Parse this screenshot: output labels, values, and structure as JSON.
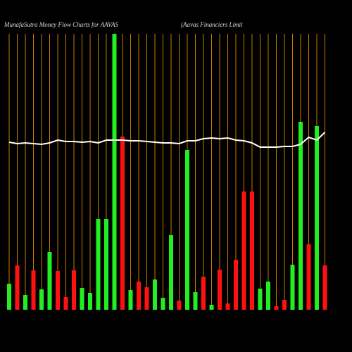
{
  "chart_data": {
    "type": "bar",
    "title": "MunafaSutra  Money Flow  Charts for AAVAS",
    "subtitle": "(Aavas Financiers Limit",
    "categories": [
      null,
      null,
      null,
      null,
      null,
      null,
      null,
      null,
      null,
      null,
      null,
      null,
      null,
      null,
      null,
      null,
      null,
      null,
      null,
      null,
      null,
      null,
      null,
      null,
      null,
      null,
      null,
      null,
      null,
      null,
      null,
      null,
      null,
      null,
      null,
      null,
      null,
      null,
      null,
      null
    ],
    "values": [
      37,
      63,
      21,
      56,
      29,
      82,
      55,
      18,
      56,
      31,
      24,
      129,
      129,
      392,
      246,
      28,
      40,
      32,
      43,
      17,
      106,
      13,
      227,
      25,
      47,
      7,
      57,
      9,
      71,
      168,
      168,
      30,
      40,
      5,
      14,
      64,
      267,
      93,
      261,
      63
    ],
    "colors": [
      "#22ee22",
      "#ff1111",
      "#22ee22",
      "#ff1111",
      "#22ee22",
      "#22ee22",
      "#ff1111",
      "#ff1111",
      "#ff1111",
      "#22ee22",
      "#22ee22",
      "#22ee22",
      "#22ee22",
      "#22ee22",
      "#ff1111",
      "#22ee22",
      "#ff1111",
      "#ff1111",
      "#22ee22",
      "#22ee22",
      "#22ee22",
      "#ff1111",
      "#22ee22",
      "#22ee22",
      "#ff1111",
      "#22ee22",
      "#ff1111",
      "#ff1111",
      "#ff1111",
      "#ff1111",
      "#ff1111",
      "#22ee22",
      "#22ee22",
      "#ff1111",
      "#ff1111",
      "#22ee22",
      "#22ee22",
      "#ff1111",
      "#22ee22",
      "#ff1111"
    ],
    "line": {
      "color": "#ffffff",
      "values": [
        238,
        236,
        237,
        236,
        235,
        237,
        241,
        239,
        239,
        238,
        239,
        237,
        241,
        241,
        241,
        240,
        240,
        239,
        238,
        237,
        237,
        236,
        240,
        240,
        243,
        244,
        243,
        244,
        241,
        240,
        237,
        231,
        231,
        231,
        232,
        232,
        235,
        245,
        241,
        252
      ]
    },
    "ylim": [
      0,
      400
    ],
    "grid": true,
    "grid_color": "#cc7a00"
  }
}
